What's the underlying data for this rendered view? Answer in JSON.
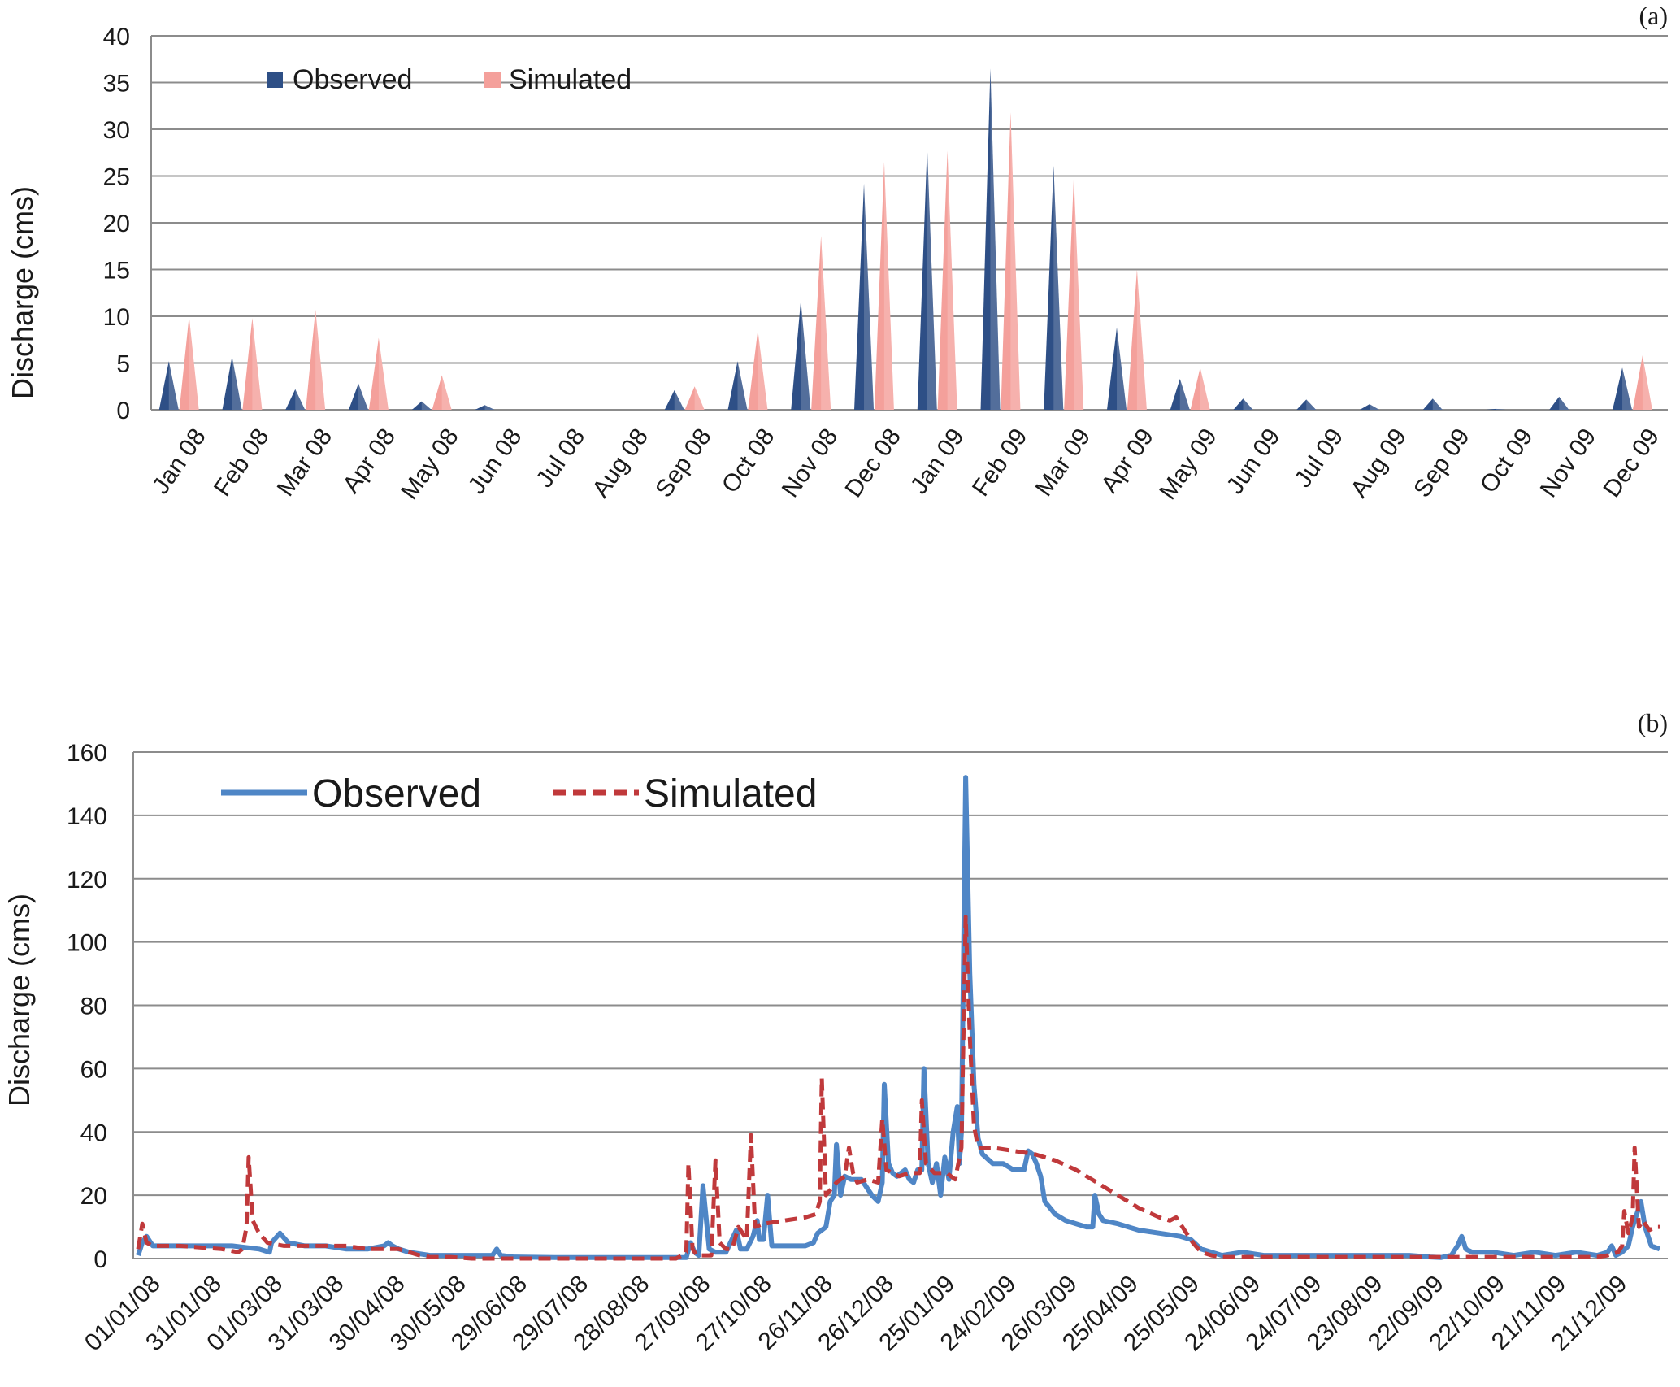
{
  "colors": {
    "observed_a": "#2e4f86",
    "simulated_a": "#f4a09b",
    "observed_b": "#4f86c6",
    "simulated_b": "#c0393b"
  },
  "chart_data": [
    {
      "panel_label": "(a)",
      "type": "bar",
      "ylabel": "Discharge (cms)",
      "ylim": [
        0,
        40
      ],
      "yticks": [
        0,
        5,
        10,
        15,
        20,
        25,
        30,
        35,
        40
      ],
      "legend_position": "top-left",
      "categories": [
        "Jan 08",
        "Feb 08",
        "Mar 08",
        "Apr 08",
        "May 08",
        "Jun 08",
        "Jul 08",
        "Aug 08",
        "Sep 08",
        "Oct 08",
        "Nov 08",
        "Dec 08",
        "Jan 09",
        "Feb 09",
        "Mar 09",
        "Apr 09",
        "May 09",
        "Jun 09",
        "Jul 09",
        "Aug 09",
        "Sep 09",
        "Oct 09",
        "Nov 09",
        "Dec 09"
      ],
      "series": [
        {
          "name": "Observed",
          "values": [
            5.2,
            5.7,
            2.2,
            2.8,
            0.9,
            0.5,
            0,
            0,
            2.1,
            5.2,
            11.7,
            24.2,
            28.1,
            36.5,
            26.1,
            8.8,
            3.3,
            1.2,
            1.1,
            0.6,
            1.2,
            0.1,
            1.4,
            4.5
          ]
        },
        {
          "name": "Simulated",
          "values": [
            10.0,
            9.8,
            10.7,
            7.7,
            3.7,
            0,
            0,
            0,
            2.5,
            8.5,
            18.6,
            26.5,
            27.7,
            31.8,
            24.9,
            15.0,
            4.5,
            0,
            0,
            0,
            0,
            0,
            0,
            5.8
          ]
        }
      ]
    },
    {
      "panel_label": "(b)",
      "type": "line",
      "ylabel": "Discharge (cms)",
      "ylim": [
        0,
        160
      ],
      "yticks": [
        0,
        20,
        40,
        60,
        80,
        100,
        120,
        140,
        160
      ],
      "legend_position": "top-left",
      "x_tick_labels": [
        "01/01/08",
        "31/01/08",
        "01/03/08",
        "31/03/08",
        "30/04/08",
        "30/05/08",
        "29/06/08",
        "29/07/08",
        "28/08/08",
        "27/09/08",
        "27/10/08",
        "26/11/08",
        "26/12/08",
        "25/01/09",
        "24/02/09",
        "26/03/09",
        "25/04/09",
        "25/05/09",
        "24/06/09",
        "24/07/09",
        "23/08/09",
        "22/09/09",
        "22/10/09",
        "21/11/09",
        "21/12/09"
      ],
      "x_range_days": [
        0,
        730
      ],
      "series": [
        {
          "name": "Observed",
          "points": [
            [
              0,
              1
            ],
            [
              2,
              5
            ],
            [
              4,
              7
            ],
            [
              7,
              4
            ],
            [
              15,
              4
            ],
            [
              30,
              4
            ],
            [
              45,
              4
            ],
            [
              58,
              3
            ],
            [
              63,
              2
            ],
            [
              64,
              5
            ],
            [
              68,
              8
            ],
            [
              72,
              5
            ],
            [
              80,
              4
            ],
            [
              90,
              4
            ],
            [
              100,
              3
            ],
            [
              110,
              3
            ],
            [
              118,
              4
            ],
            [
              120,
              5
            ],
            [
              122,
              4
            ],
            [
              125,
              3
            ],
            [
              130,
              2
            ],
            [
              140,
              1
            ],
            [
              155,
              1
            ],
            [
              165,
              1
            ],
            [
              170,
              1
            ],
            [
              172,
              3
            ],
            [
              174,
              1
            ],
            [
              180,
              0.5
            ],
            [
              200,
              0.3
            ],
            [
              240,
              0.3
            ],
            [
              263,
              0.3
            ],
            [
              265,
              5
            ],
            [
              267,
              2
            ],
            [
              269,
              1
            ],
            [
              271,
              23
            ],
            [
              274,
              3
            ],
            [
              277,
              2
            ],
            [
              282,
              2
            ],
            [
              287,
              9
            ],
            [
              289,
              3
            ],
            [
              292,
              3
            ],
            [
              295,
              7
            ],
            [
              297,
              12
            ],
            [
              298,
              6
            ],
            [
              300,
              6
            ],
            [
              302,
              20
            ],
            [
              304,
              4
            ],
            [
              310,
              4
            ],
            [
              320,
              4
            ],
            [
              324,
              5
            ],
            [
              326,
              8
            ],
            [
              330,
              10
            ],
            [
              332,
              18
            ],
            [
              334,
              20
            ],
            [
              335,
              36
            ],
            [
              337,
              20
            ],
            [
              339,
              26
            ],
            [
              342,
              25
            ],
            [
              347,
              25
            ],
            [
              350,
              22
            ],
            [
              352,
              20
            ],
            [
              355,
              18
            ],
            [
              357,
              24
            ],
            [
              358,
              55
            ],
            [
              360,
              30
            ],
            [
              362,
              27
            ],
            [
              364,
              26
            ],
            [
              368,
              28
            ],
            [
              370,
              25
            ],
            [
              372,
              24
            ],
            [
              374,
              28
            ],
            [
              376,
              28
            ],
            [
              377,
              60
            ],
            [
              379,
              30
            ],
            [
              381,
              24
            ],
            [
              383,
              30
            ],
            [
              385,
              20
            ],
            [
              387,
              32
            ],
            [
              389,
              25
            ],
            [
              391,
              40
            ],
            [
              393,
              48
            ],
            [
              394,
              30
            ],
            [
              395,
              40
            ],
            [
              397,
              152
            ],
            [
              399,
              90
            ],
            [
              401,
              55
            ],
            [
              403,
              38
            ],
            [
              405,
              33
            ],
            [
              410,
              30
            ],
            [
              415,
              30
            ],
            [
              420,
              28
            ],
            [
              425,
              28
            ],
            [
              427,
              34
            ],
            [
              429,
              33
            ],
            [
              431,
              30
            ],
            [
              433,
              26
            ],
            [
              435,
              18
            ],
            [
              440,
              14
            ],
            [
              445,
              12
            ],
            [
              450,
              11
            ],
            [
              455,
              10
            ],
            [
              458,
              10
            ],
            [
              459,
              20
            ],
            [
              461,
              14
            ],
            [
              463,
              12
            ],
            [
              470,
              11
            ],
            [
              480,
              9
            ],
            [
              490,
              8
            ],
            [
              500,
              7
            ],
            [
              505,
              6
            ],
            [
              510,
              3
            ],
            [
              515,
              2
            ],
            [
              520,
              1
            ],
            [
              530,
              2
            ],
            [
              540,
              1
            ],
            [
              560,
              1
            ],
            [
              580,
              1
            ],
            [
              600,
              1
            ],
            [
              610,
              1
            ],
            [
              620,
              0.5
            ],
            [
              625,
              0.3
            ],
            [
              630,
              1
            ],
            [
              633,
              4
            ],
            [
              635,
              7
            ],
            [
              637,
              3
            ],
            [
              640,
              2
            ],
            [
              650,
              2
            ],
            [
              660,
              1
            ],
            [
              670,
              2
            ],
            [
              680,
              1
            ],
            [
              690,
              2
            ],
            [
              700,
              1
            ],
            [
              705,
              2
            ],
            [
              707,
              4
            ],
            [
              709,
              1
            ],
            [
              712,
              2
            ],
            [
              715,
              4
            ],
            [
              717,
              10
            ],
            [
              719,
              14
            ],
            [
              721,
              18
            ],
            [
              723,
              10
            ],
            [
              726,
              4
            ],
            [
              730,
              3
            ]
          ]
        },
        {
          "name": "Simulated",
          "points": [
            [
              0,
              3
            ],
            [
              2,
              11
            ],
            [
              4,
              5
            ],
            [
              7,
              4
            ],
            [
              20,
              4
            ],
            [
              40,
              3
            ],
            [
              48,
              2
            ],
            [
              50,
              3
            ],
            [
              52,
              10
            ],
            [
              53,
              32
            ],
            [
              55,
              12
            ],
            [
              58,
              8
            ],
            [
              62,
              5
            ],
            [
              70,
              4
            ],
            [
              80,
              4
            ],
            [
              90,
              4
            ],
            [
              100,
              4
            ],
            [
              110,
              3
            ],
            [
              120,
              3
            ],
            [
              125,
              3
            ],
            [
              130,
              2
            ],
            [
              135,
              1
            ],
            [
              140,
              0.5
            ],
            [
              150,
              0.5
            ],
            [
              160,
              0
            ],
            [
              200,
              0
            ],
            [
              240,
              0
            ],
            [
              258,
              0
            ],
            [
              261,
              1
            ],
            [
              263,
              2
            ],
            [
              264,
              30
            ],
            [
              266,
              3
            ],
            [
              268,
              1
            ],
            [
              272,
              1
            ],
            [
              275,
              1
            ],
            [
              277,
              31
            ],
            [
              279,
              5
            ],
            [
              282,
              3
            ],
            [
              285,
              3
            ],
            [
              288,
              10
            ],
            [
              290,
              8
            ],
            [
              292,
              6
            ],
            [
              294,
              39
            ],
            [
              296,
              10
            ],
            [
              300,
              11
            ],
            [
              310,
              12
            ],
            [
              320,
              13
            ],
            [
              325,
              14
            ],
            [
              327,
              18
            ],
            [
              328,
              57
            ],
            [
              330,
              20
            ],
            [
              335,
              24
            ],
            [
              339,
              26
            ],
            [
              341,
              35
            ],
            [
              343,
              27
            ],
            [
              345,
              24
            ],
            [
              350,
              25
            ],
            [
              355,
              24
            ],
            [
              357,
              44
            ],
            [
              359,
              28
            ],
            [
              365,
              26
            ],
            [
              370,
              27
            ],
            [
              375,
              27
            ],
            [
              376,
              50
            ],
            [
              378,
              30
            ],
            [
              382,
              27
            ],
            [
              388,
              27
            ],
            [
              392,
              25
            ],
            [
              395,
              35
            ],
            [
              397,
              108
            ],
            [
              399,
              70
            ],
            [
              401,
              42
            ],
            [
              403,
              35
            ],
            [
              410,
              35
            ],
            [
              420,
              34
            ],
            [
              430,
              33
            ],
            [
              440,
              31
            ],
            [
              450,
              28
            ],
            [
              460,
              24
            ],
            [
              470,
              20
            ],
            [
              480,
              16
            ],
            [
              490,
              13
            ],
            [
              495,
              12
            ],
            [
              498,
              13
            ],
            [
              502,
              9
            ],
            [
              506,
              5
            ],
            [
              510,
              2
            ],
            [
              515,
              1
            ],
            [
              520,
              0.5
            ],
            [
              540,
              0.5
            ],
            [
              560,
              0.5
            ],
            [
              600,
              0.5
            ],
            [
              640,
              0.5
            ],
            [
              680,
              0.5
            ],
            [
              700,
              0.5
            ],
            [
              705,
              1
            ],
            [
              710,
              2
            ],
            [
              712,
              4
            ],
            [
              713,
              15
            ],
            [
              715,
              8
            ],
            [
              717,
              13
            ],
            [
              718,
              35
            ],
            [
              720,
              10
            ],
            [
              722,
              12
            ],
            [
              725,
              9
            ],
            [
              728,
              10
            ],
            [
              730,
              10
            ]
          ]
        }
      ]
    }
  ]
}
